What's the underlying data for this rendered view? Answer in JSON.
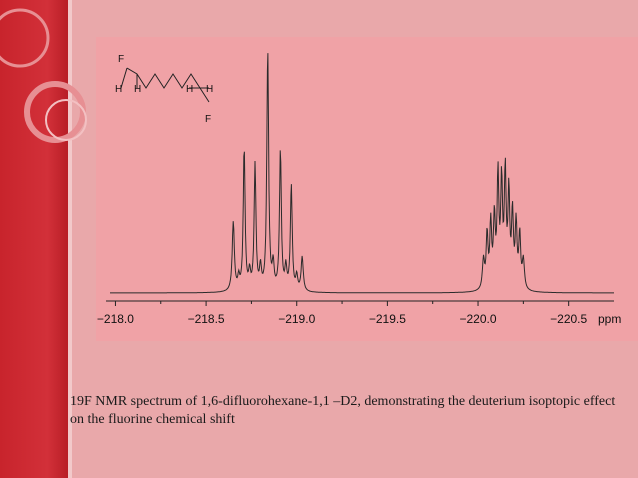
{
  "caption": "19F NMR spectrum of 1,6-difluorohexane-1,1 –D2, demonstrating the deuterium isoptopic effect on the fluorine chemical shift",
  "colors": {
    "background": "#e9a8aa",
    "sidebar": "#c8242c",
    "panel": "#f0a2a6",
    "trace": "#2b2b2b"
  },
  "structure": {
    "atoms": [
      "F",
      "H",
      "H",
      "H",
      "H",
      "F"
    ]
  },
  "chart_data": {
    "type": "line",
    "x_unit": "ppm",
    "x_reversed": true,
    "xlim": [
      -217.97,
      -220.75
    ],
    "ticks": [
      -218.0,
      -218.5,
      -219.0,
      -219.5,
      -220.0,
      -220.5
    ],
    "tick_labels": [
      "−218.0",
      "−218.5",
      "−219.0",
      "−219.5",
      "−220.0",
      "−220.5"
    ],
    "grid": false,
    "baseline": 0.0,
    "ylim": [
      -0.03,
      1.0
    ],
    "peaks": [
      {
        "x": -218.65,
        "y": 0.28,
        "w": 0.007
      },
      {
        "x": -218.68,
        "y": 0.05,
        "w": 0.006
      },
      {
        "x": -218.71,
        "y": 0.58,
        "w": 0.006
      },
      {
        "x": -218.74,
        "y": 0.07,
        "w": 0.006
      },
      {
        "x": -218.77,
        "y": 0.51,
        "w": 0.006
      },
      {
        "x": -218.8,
        "y": 0.09,
        "w": 0.006
      },
      {
        "x": -218.84,
        "y": 0.98,
        "w": 0.006
      },
      {
        "x": -218.87,
        "y": 0.1,
        "w": 0.006
      },
      {
        "x": -218.91,
        "y": 0.57,
        "w": 0.006
      },
      {
        "x": -218.94,
        "y": 0.09,
        "w": 0.006
      },
      {
        "x": -218.97,
        "y": 0.43,
        "w": 0.006
      },
      {
        "x": -219.0,
        "y": 0.06,
        "w": 0.006
      },
      {
        "x": -219.03,
        "y": 0.14,
        "w": 0.007
      },
      {
        "x": -220.03,
        "y": 0.12,
        "w": 0.007
      },
      {
        "x": -220.05,
        "y": 0.22,
        "w": 0.006
      },
      {
        "x": -220.07,
        "y": 0.26,
        "w": 0.006
      },
      {
        "x": -220.09,
        "y": 0.28,
        "w": 0.006
      },
      {
        "x": -220.11,
        "y": 0.45,
        "w": 0.006
      },
      {
        "x": -220.13,
        "y": 0.42,
        "w": 0.006
      },
      {
        "x": -220.15,
        "y": 0.46,
        "w": 0.006
      },
      {
        "x": -220.17,
        "y": 0.38,
        "w": 0.006
      },
      {
        "x": -220.19,
        "y": 0.3,
        "w": 0.006
      },
      {
        "x": -220.21,
        "y": 0.26,
        "w": 0.006
      },
      {
        "x": -220.23,
        "y": 0.22,
        "w": 0.006
      },
      {
        "x": -220.25,
        "y": 0.12,
        "w": 0.007
      }
    ]
  }
}
